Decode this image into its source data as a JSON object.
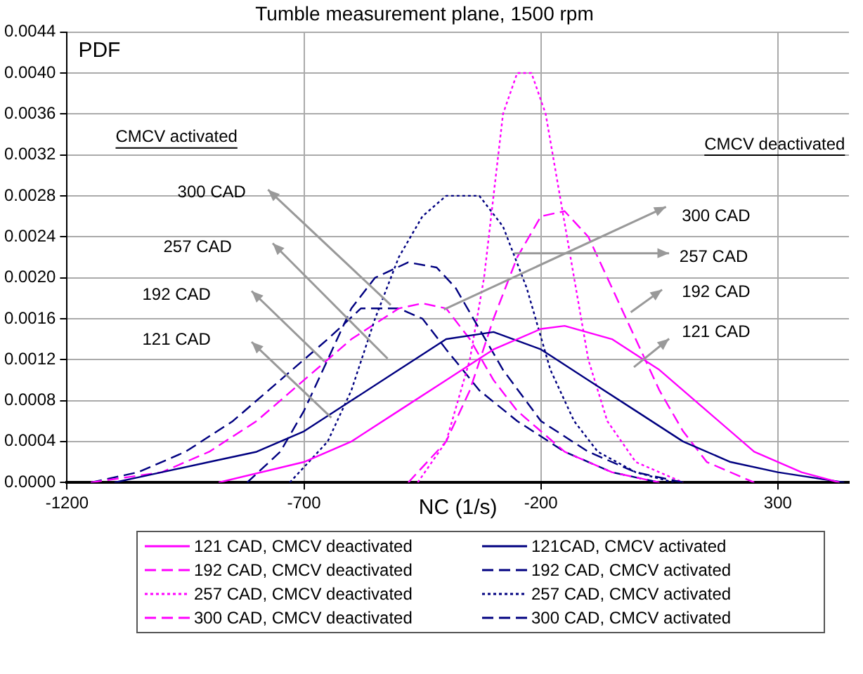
{
  "chart_data": {
    "type": "line",
    "title": "Tumble measurement plane, 1500 rpm",
    "xlabel": "NC (1/s)",
    "ylabel": "PDF",
    "xlim": [
      -1200,
      450
    ],
    "xticks": [
      -1200,
      -700,
      -200,
      300
    ],
    "ylim": [
      0,
      0.0044
    ],
    "yticks": [
      {
        "value": 0,
        "label": "0.0000"
      },
      0.0004,
      0.0008,
      0.0012,
      0.0016,
      {
        "value": 0.002,
        "label": "0.0020"
      },
      0.0024,
      0.0028,
      0.0032,
      0.0036,
      {
        "value": 0.004,
        "label": "0.0040"
      },
      0.0044
    ],
    "grid": true,
    "legend": "bottom",
    "marker": "none",
    "series": [
      {
        "name": "121 CAD, CMCV deactivated",
        "color": "#ff00ff",
        "line_style": "solid",
        "x": [
          -880,
          -700,
          -600,
          -500,
          -400,
          -300,
          -200,
          -150,
          -50,
          50,
          150,
          250,
          350,
          430
        ],
        "values": [
          0,
          0.0002,
          0.0004,
          0.0007,
          0.001,
          0.0013,
          0.0015,
          0.00153,
          0.0014,
          0.0011,
          0.0007,
          0.0003,
          0.0001,
          0
        ]
      },
      {
        "name": "121CAD, CMCV activated",
        "color": "#000080",
        "line_style": "solid",
        "x": [
          -1100,
          -1000,
          -900,
          -800,
          -700,
          -600,
          -500,
          -400,
          -300,
          -200,
          -100,
          0,
          100,
          200,
          300,
          440
        ],
        "values": [
          0,
          0.0001,
          0.0002,
          0.0003,
          0.0005,
          0.0008,
          0.0011,
          0.0014,
          0.00147,
          0.0013,
          0.001,
          0.0007,
          0.0004,
          0.0002,
          0.0001,
          0
        ]
      },
      {
        "name": "192 CAD, CMCV deactivated",
        "color": "#ff00ff",
        "line_style": "dashed",
        "x": [
          -480,
          -400,
          -350,
          -300,
          -250,
          -200,
          -150,
          -100,
          -50,
          0,
          50,
          100,
          150,
          250
        ],
        "values": [
          0,
          0.0004,
          0.0009,
          0.0016,
          0.0022,
          0.0026,
          0.00265,
          0.0024,
          0.0019,
          0.0014,
          0.0009,
          0.0005,
          0.0002,
          0
        ]
      },
      {
        "name": "192 CAD, CMCV activated",
        "color": "#000080",
        "line_style": "dashed",
        "x": [
          -820,
          -750,
          -700,
          -650,
          -600,
          -550,
          -480,
          -420,
          -380,
          -330,
          -280,
          -200,
          -100,
          0,
          100
        ],
        "values": [
          0,
          0.0003,
          0.0007,
          0.0012,
          0.0017,
          0.002,
          0.00215,
          0.0021,
          0.0019,
          0.0015,
          0.0011,
          0.0006,
          0.0003,
          0.0001,
          0
        ]
      },
      {
        "name": "257 CAD, CMCV deactivated",
        "color": "#ff00ff",
        "line_style": "dotted",
        "x": [
          -460,
          -400,
          -350,
          -320,
          -300,
          -280,
          -250,
          -220,
          -190,
          -160,
          -130,
          -100,
          -60,
          0,
          50,
          100
        ],
        "values": [
          0,
          0.0004,
          0.0012,
          0.002,
          0.0028,
          0.0036,
          0.004,
          0.004,
          0.0036,
          0.0028,
          0.002,
          0.0012,
          0.0006,
          0.0002,
          0.0001,
          0
        ]
      },
      {
        "name": "257 CAD, CMCV activated",
        "color": "#000080",
        "line_style": "dotted",
        "x": [
          -730,
          -650,
          -600,
          -550,
          -500,
          -450,
          -400,
          -330,
          -280,
          -230,
          -180,
          -130,
          -80,
          0,
          80
        ],
        "values": [
          0,
          0.0004,
          0.0009,
          0.0016,
          0.0022,
          0.0026,
          0.0028,
          0.0028,
          0.0025,
          0.0019,
          0.0011,
          0.0006,
          0.0003,
          0.0001,
          0
        ]
      },
      {
        "name": "300 CAD, CMCV deactivated",
        "color": "#ff00ff",
        "line_style": "dashed",
        "x": [
          -1150,
          -1000,
          -900,
          -800,
          -700,
          -600,
          -500,
          -450,
          -400,
          -350,
          -300,
          -250,
          -150,
          -50,
          50
        ],
        "values": [
          0,
          0.0001,
          0.0003,
          0.0006,
          0.001,
          0.0014,
          0.0017,
          0.00175,
          0.0017,
          0.0014,
          0.001,
          0.0007,
          0.0003,
          0.0001,
          0
        ]
      },
      {
        "name": "300 CAD, CMCV activated",
        "color": "#000080",
        "line_style": "dashed",
        "x": [
          -1150,
          -1050,
          -950,
          -850,
          -750,
          -650,
          -580,
          -500,
          -450,
          -400,
          -330,
          -250,
          -150,
          -50,
          50
        ],
        "values": [
          0,
          0.0001,
          0.0003,
          0.0006,
          0.001,
          0.0014,
          0.0017,
          0.0017,
          0.0016,
          0.0013,
          0.0009,
          0.0006,
          0.0003,
          0.0001,
          0
        ]
      }
    ],
    "annotations": [
      "CMCV activated",
      "300 CAD",
      "257 CAD",
      "192 CAD",
      "121 CAD",
      "CMCV deactivated",
      "300 CAD",
      "257 CAD",
      "192 CAD",
      "121 CAD"
    ]
  }
}
